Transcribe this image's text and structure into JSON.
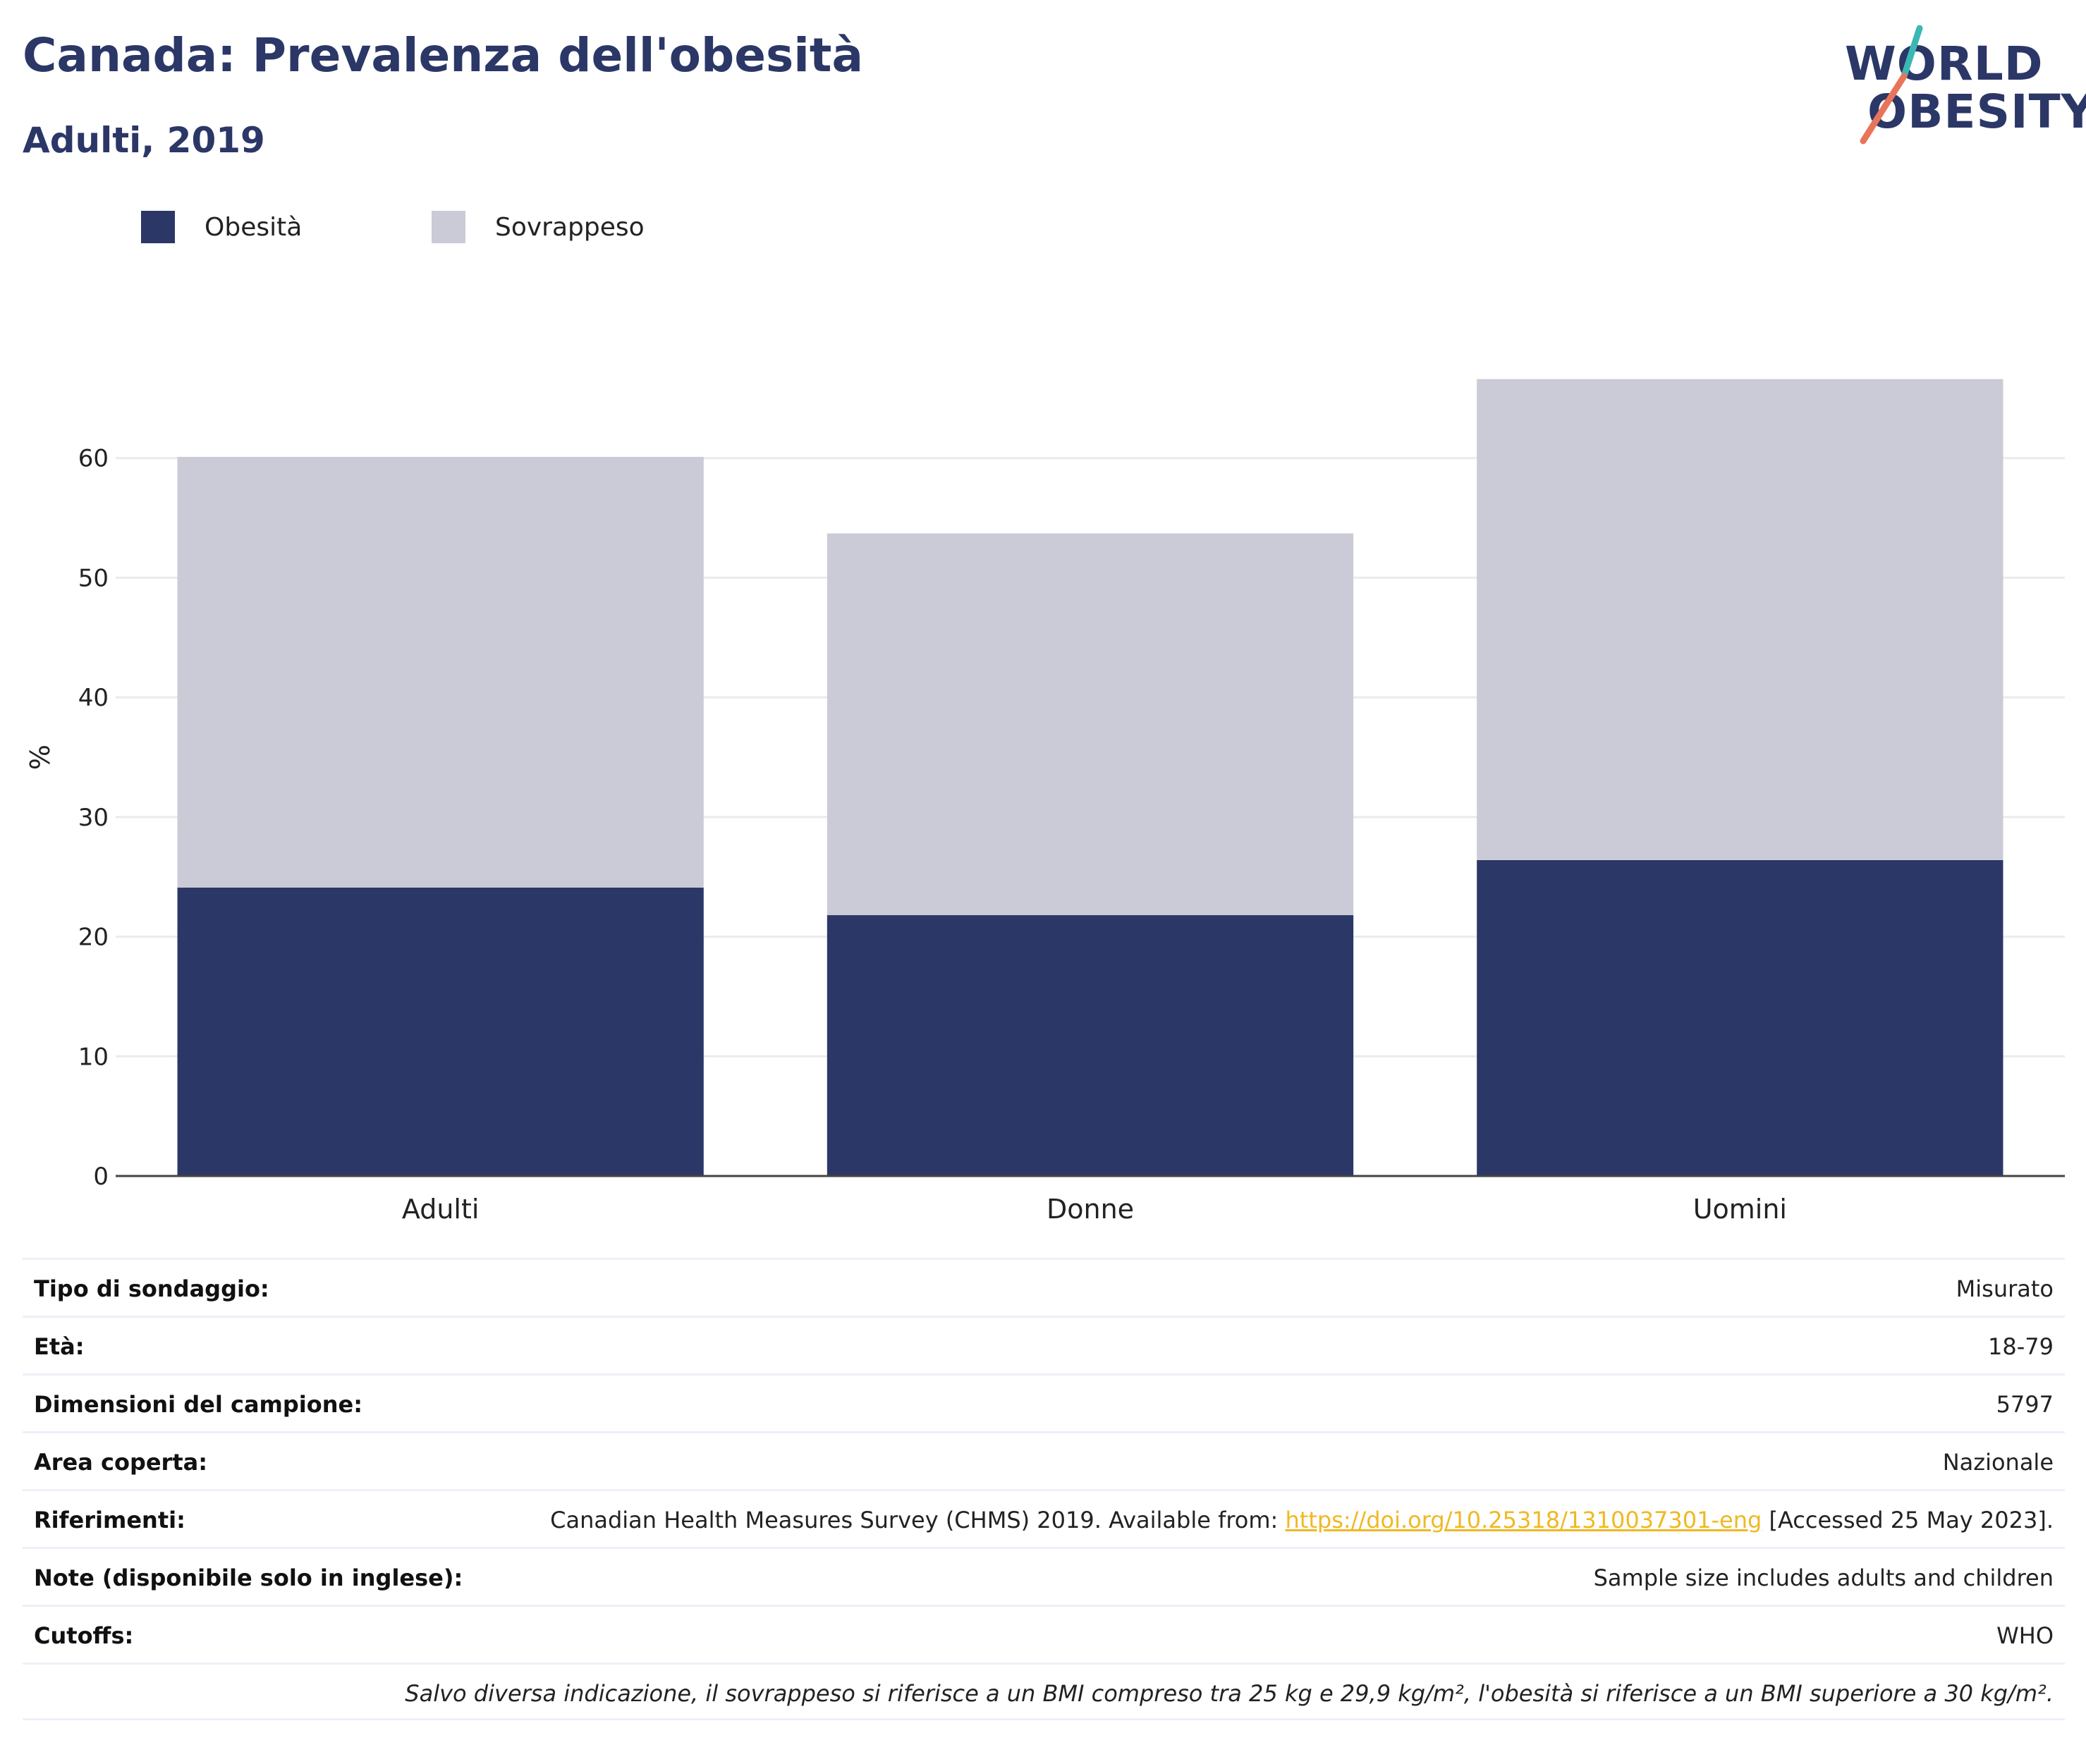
{
  "title": "Canada: Prevalenza dell'obesità",
  "subtitle": "Adulti, 2019",
  "logo": {
    "line1": "WORLD",
    "line2": "OBESITY",
    "accent_colors": [
      "#3bb8b4",
      "#e8745a"
    ]
  },
  "legend": [
    {
      "label": "Obesità",
      "color": "#2b3766"
    },
    {
      "label": "Sovrappeso",
      "color": "#cacbd6"
    }
  ],
  "chart_data": {
    "type": "bar",
    "stacked": true,
    "categories": [
      "Adulti",
      "Donne",
      "Uomini"
    ],
    "series": [
      {
        "name": "Obesità",
        "values": [
          24.1,
          21.8,
          26.4
        ],
        "color": "#2b3766"
      },
      {
        "name": "Sovrappeso",
        "values": [
          36.0,
          31.9,
          40.2
        ],
        "color": "#cacbd6"
      }
    ],
    "ylabel": "%",
    "xlabel": "",
    "ylim": [
      0,
      70
    ],
    "yticks": [
      0,
      10,
      20,
      30,
      40,
      50,
      60
    ],
    "grid": true,
    "legend_position": "top-left"
  },
  "info": {
    "rows": [
      {
        "label": "Tipo di sondaggio:",
        "value": "Misurato"
      },
      {
        "label": "Età:",
        "value": "18-79"
      },
      {
        "label": "Dimensioni del campione:",
        "value": "5797"
      },
      {
        "label": "Area coperta:",
        "value": "Nazionale"
      },
      {
        "label": "Note (disponibile solo in inglese):",
        "value": "Sample size includes adults and children"
      },
      {
        "label": "Cutoffs:",
        "value": "WHO"
      }
    ],
    "references": {
      "label": "Riferimenti:",
      "prefix": "Canadian Health Measures Survey (CHMS) 2019. Available from: ",
      "link": "https://doi.org/10.25318/1310037301-eng",
      "suffix": " [Accessed 25 May 2023]."
    },
    "footnote": "Salvo diversa indicazione, il sovrappeso si riferisce a un BMI compreso tra 25 kg e 29,9 kg/m², l'obesità si riferisce a un BMI superiore a 30 kg/m²."
  }
}
